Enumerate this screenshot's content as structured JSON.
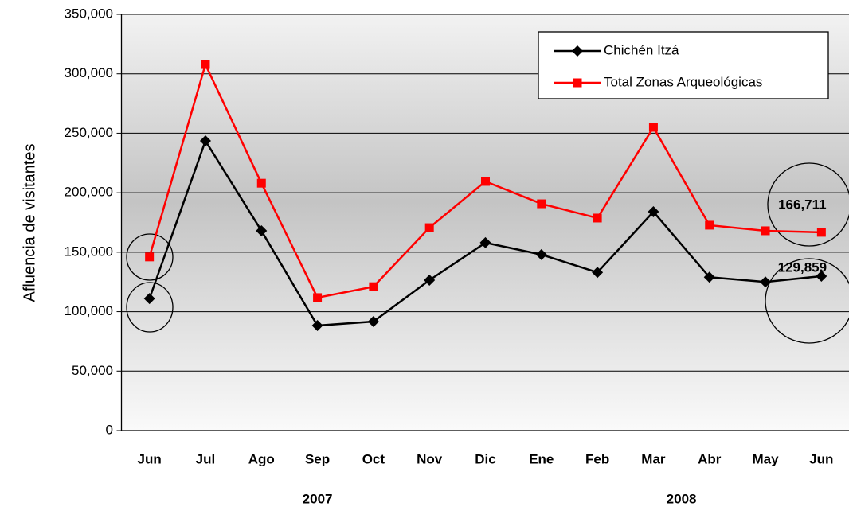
{
  "chart_data": {
    "type": "line",
    "y_axis_label": "Afluencia de visitantes",
    "categories": [
      "Jun",
      "Jul",
      "Ago",
      "Sep",
      "Oct",
      "Nov",
      "Dic",
      "Ene",
      "Feb",
      "Mar",
      "Abr",
      "May",
      "Jun"
    ],
    "x_group_labels": [
      "2007",
      "2008"
    ],
    "series": [
      {
        "name": "Chichén Itzá",
        "color": "#000000",
        "marker": "diamond",
        "values": [
          111000,
          243600,
          168000,
          88300,
          91700,
          126500,
          158000,
          148000,
          133000,
          184000,
          129000,
          125000,
          129859
        ],
        "value_labels": [
          null,
          null,
          null,
          null,
          null,
          null,
          null,
          null,
          null,
          null,
          null,
          null,
          "129,859"
        ]
      },
      {
        "name": "Total Zonas Arqueológicas",
        "color": "#ff0000",
        "marker": "square",
        "values": [
          146000,
          307800,
          208000,
          111800,
          121000,
          170600,
          209500,
          190700,
          178700,
          255000,
          172700,
          168000,
          166711
        ],
        "value_labels": [
          null,
          null,
          null,
          null,
          null,
          null,
          null,
          null,
          null,
          null,
          null,
          null,
          "166,711"
        ]
      }
    ],
    "ylim": [
      0,
      350000
    ],
    "yticks": [
      0,
      {
        "value": 50000,
        "label": "50,000"
      },
      {
        "value": 100000,
        "label": "100,000"
      },
      {
        "value": 150000,
        "label": "150,000"
      },
      {
        "value": 200000,
        "label": "200,000"
      },
      {
        "value": 250000,
        "label": "250,000"
      },
      {
        "value": 300000,
        "label": "300,000"
      },
      {
        "value": 350000,
        "label": "350,000"
      }
    ],
    "grid": true,
    "legend": "upper right"
  }
}
